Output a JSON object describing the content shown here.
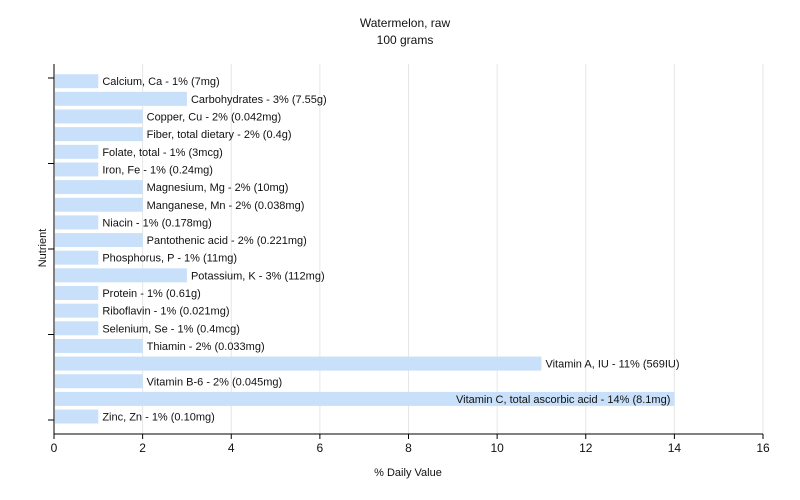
{
  "chart_data": {
    "type": "bar",
    "orientation": "horizontal",
    "title": "Watermelon, raw",
    "subtitle": "100 grams",
    "xlabel": "% Daily Value",
    "ylabel": "Nutrient",
    "xlim": [
      0,
      16
    ],
    "xticks": [
      0,
      2,
      4,
      6,
      8,
      10,
      12,
      14,
      16
    ],
    "grid": "vertical",
    "bar_color": "#c8e0fa",
    "categories": [
      "Calcium, Ca",
      "Carbohydrates",
      "Copper, Cu",
      "Fiber, total dietary",
      "Folate, total",
      "Iron, Fe",
      "Magnesium, Mg",
      "Manganese, Mn",
      "Niacin",
      "Pantothenic acid",
      "Phosphorus, P",
      "Potassium, K",
      "Protein",
      "Riboflavin",
      "Selenium, Se",
      "Thiamin",
      "Vitamin A, IU",
      "Vitamin B-6",
      "Vitamin C, total ascorbic acid",
      "Zinc, Zn"
    ],
    "values": [
      1,
      3,
      2,
      2,
      1,
      1,
      2,
      2,
      1,
      2,
      1,
      3,
      1,
      1,
      1,
      2,
      11,
      2,
      14,
      1
    ],
    "labels": [
      "Calcium, Ca - 1% (7mg)",
      "Carbohydrates - 3% (7.55g)",
      "Copper, Cu - 2% (0.042mg)",
      "Fiber, total dietary - 2% (0.4g)",
      "Folate, total - 1% (3mcg)",
      "Iron, Fe - 1% (0.24mg)",
      "Magnesium, Mg - 2% (10mg)",
      "Manganese, Mn - 2% (0.038mg)",
      "Niacin - 1% (0.178mg)",
      "Pantothenic acid - 2% (0.221mg)",
      "Phosphorus, P - 1% (11mg)",
      "Potassium, K - 3% (112mg)",
      "Protein - 1% (0.61g)",
      "Riboflavin - 1% (0.021mg)",
      "Selenium, Se - 1% (0.4mcg)",
      "Thiamin - 2% (0.033mg)",
      "Vitamin A, IU - 11% (569IU)",
      "Vitamin B-6 - 2% (0.045mg)",
      "Vitamin C, total ascorbic acid - 14% (8.1mg)",
      "Zinc, Zn - 1% (0.10mg)"
    ]
  }
}
